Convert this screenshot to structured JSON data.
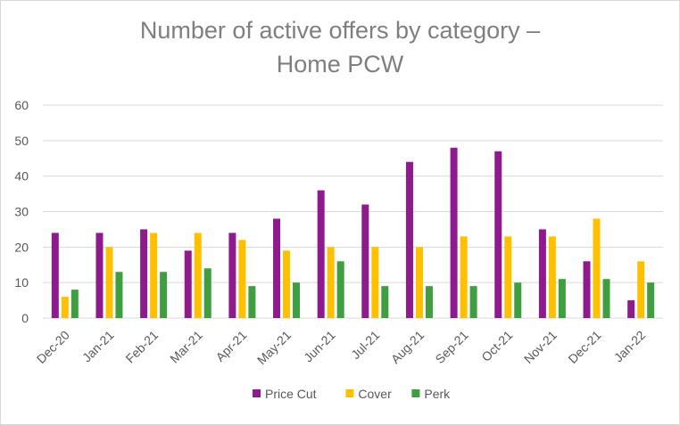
{
  "chart_data": {
    "type": "bar",
    "title_line1": "Number of active offers by category –",
    "title_line2": "Home PCW",
    "categories": [
      "Dec-20",
      "Jan-21",
      "Feb-21",
      "Mar-21",
      "Apr-21",
      "May-21",
      "Jun-21",
      "Jul-21",
      "Aug-21",
      "Sep-21",
      "Oct-21",
      "Nov-21",
      "Dec-21",
      "Jan-22"
    ],
    "series": [
      {
        "name": "Price Cut",
        "color": "#8e1a8e",
        "values": [
          24,
          24,
          25,
          19,
          24,
          28,
          36,
          32,
          44,
          48,
          47,
          25,
          16,
          5
        ]
      },
      {
        "name": "Cover",
        "color": "#ffc000",
        "values": [
          6,
          20,
          24,
          24,
          22,
          19,
          20,
          20,
          20,
          23,
          23,
          23,
          28,
          16
        ]
      },
      {
        "name": "Perk",
        "color": "#3f9e3f",
        "values": [
          8,
          13,
          13,
          14,
          9,
          10,
          16,
          9,
          9,
          9,
          10,
          11,
          11,
          10
        ]
      }
    ],
    "ylim": [
      0,
      60
    ],
    "yticks": [
      "0",
      "10",
      "20",
      "30",
      "40",
      "50",
      "60"
    ],
    "grid": true,
    "legend_position": "bottom"
  }
}
